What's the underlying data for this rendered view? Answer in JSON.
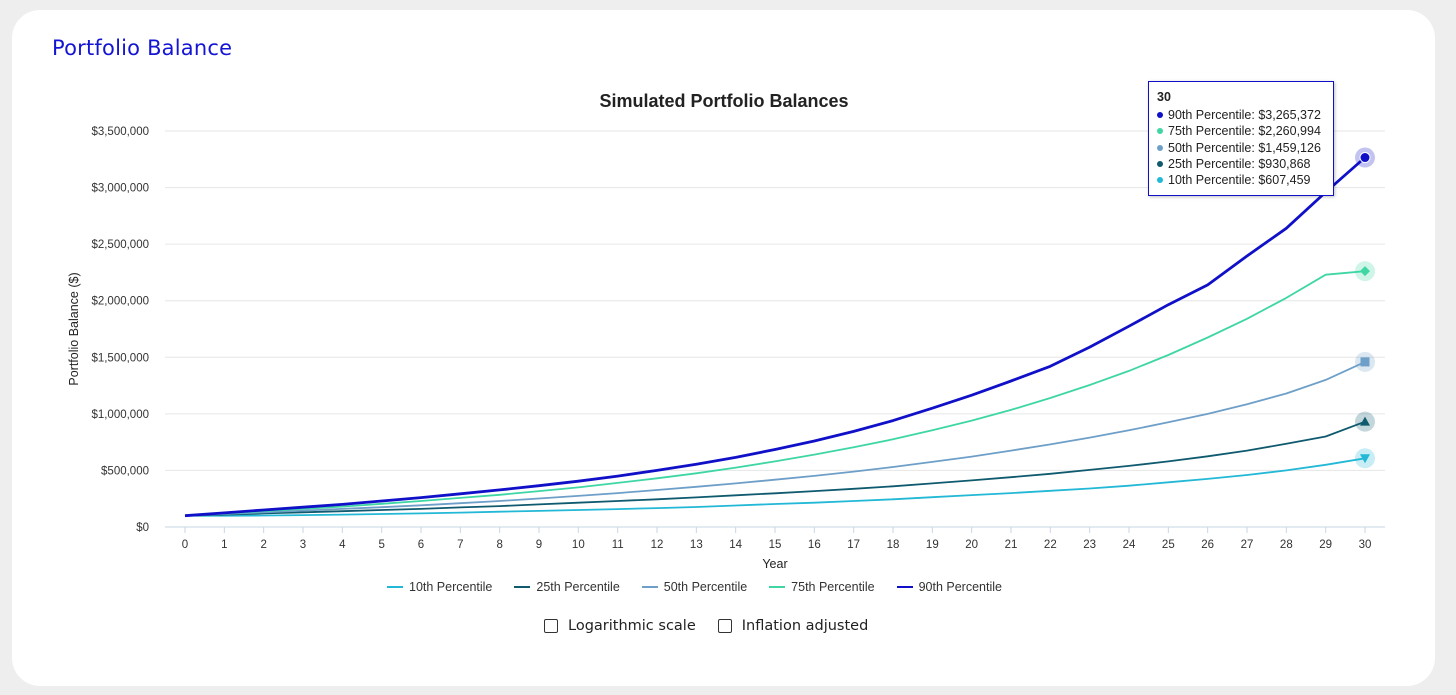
{
  "card": {
    "title": "Portfolio Balance"
  },
  "chart_data": {
    "type": "line",
    "title": "Simulated Portfolio Balances",
    "xlabel": "Year",
    "ylabel": "Portfolio Balance ($)",
    "ylim": [
      0,
      3500000
    ],
    "xlim": [
      0,
      30
    ],
    "y_ticks": [
      0,
      500000,
      1000000,
      1500000,
      2000000,
      2500000,
      3000000,
      3500000
    ],
    "y_tick_labels": [
      "$0",
      "$500,000",
      "$1,000,000",
      "$1,500,000",
      "$2,000,000",
      "$2,500,000",
      "$3,000,000",
      "$3,500,000"
    ],
    "x": [
      0,
      1,
      2,
      3,
      4,
      5,
      6,
      7,
      8,
      9,
      10,
      11,
      12,
      13,
      14,
      15,
      16,
      17,
      18,
      19,
      20,
      21,
      22,
      23,
      24,
      25,
      26,
      27,
      28,
      29,
      30
    ],
    "grid": true,
    "legend_position": "bottom",
    "series": [
      {
        "name": "10th Percentile",
        "color": "#22b8d6",
        "marker": "triangle-down",
        "values": [
          100000,
          100000,
          102000,
          105000,
          110000,
          115000,
          120000,
          127000,
          135000,
          142000,
          150000,
          158000,
          167000,
          177000,
          190000,
          203000,
          215000,
          230000,
          245000,
          263000,
          282000,
          300000,
          320000,
          340000,
          365000,
          395000,
          425000,
          460000,
          500000,
          550000,
          607459
        ]
      },
      {
        "name": "25th Percentile",
        "color": "#0f5a6e",
        "marker": "triangle",
        "values": [
          100000,
          110000,
          120000,
          130000,
          140000,
          150000,
          160000,
          173000,
          185000,
          200000,
          215000,
          230000,
          245000,
          262000,
          280000,
          298000,
          317000,
          338000,
          360000,
          385000,
          412000,
          440000,
          470000,
          505000,
          540000,
          580000,
          625000,
          675000,
          735000,
          800000,
          930868
        ]
      },
      {
        "name": "50th Percentile",
        "color": "#6e9fc8",
        "marker": "square",
        "values": [
          100000,
          115000,
          130000,
          145000,
          160000,
          175000,
          192000,
          210000,
          230000,
          252000,
          275000,
          300000,
          327000,
          355000,
          385000,
          418000,
          452000,
          490000,
          530000,
          575000,
          622000,
          675000,
          730000,
          790000,
          855000,
          925000,
          1000000,
          1085000,
          1180000,
          1300000,
          1459126
        ]
      },
      {
        "name": "75th Percentile",
        "color": "#3ed6a5",
        "marker": "diamond",
        "values": [
          100000,
          120000,
          140000,
          160000,
          180000,
          205000,
          230000,
          257000,
          285000,
          317000,
          350000,
          390000,
          430000,
          475000,
          525000,
          580000,
          640000,
          705000,
          775000,
          855000,
          940000,
          1035000,
          1140000,
          1255000,
          1380000,
          1520000,
          1675000,
          1840000,
          2025000,
          2230000,
          2260994
        ]
      },
      {
        "name": "90th Percentile",
        "color": "#1010c8",
        "marker": "circle",
        "values": [
          100000,
          125000,
          150000,
          175000,
          200000,
          230000,
          260000,
          293000,
          328000,
          365000,
          405000,
          450000,
          500000,
          555000,
          615000,
          685000,
          760000,
          845000,
          940000,
          1050000,
          1165000,
          1290000,
          1420000,
          1590000,
          1775000,
          1965000,
          2140000,
          2395000,
          2640000,
          2960000,
          3265372
        ]
      }
    ]
  },
  "tooltip": {
    "title": "30",
    "rows": [
      {
        "text": "90th Percentile: $3,265,372",
        "color": "#1010c8"
      },
      {
        "text": "75th Percentile: $2,260,994",
        "color": "#3ed6a5"
      },
      {
        "text": "50th Percentile: $1,459,126",
        "color": "#6e9fc8"
      },
      {
        "text": "25th Percentile: $930,868",
        "color": "#0f5a6e"
      },
      {
        "text": "10th Percentile: $607,459",
        "color": "#22b8d6"
      }
    ]
  },
  "legend": [
    {
      "label": "10th Percentile",
      "color": "#22b8d6"
    },
    {
      "label": "25th Percentile",
      "color": "#0f5a6e"
    },
    {
      "label": "50th Percentile",
      "color": "#6e9fc8"
    },
    {
      "label": "75th Percentile",
      "color": "#3ed6a5"
    },
    {
      "label": "90th Percentile",
      "color": "#1010c8"
    }
  ],
  "options": {
    "log_scale_label": "Logarithmic scale",
    "log_scale_checked": false,
    "inflation_label": "Inflation adjusted",
    "inflation_checked": false
  }
}
